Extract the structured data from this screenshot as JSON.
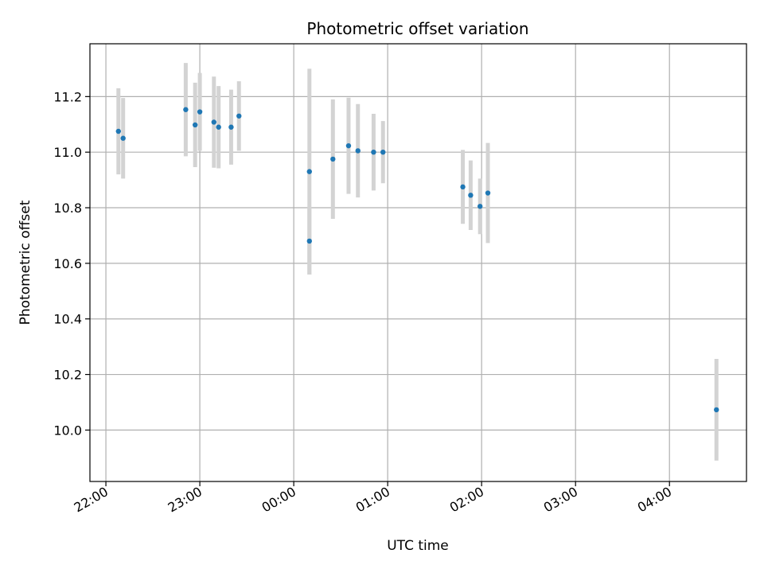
{
  "chart_data": {
    "type": "scatter",
    "title": "Photometric offset variation",
    "xlabel": "UTC time",
    "ylabel": "Photometric offset",
    "x_ticks": [
      "22:00",
      "23:00",
      "00:00",
      "01:00",
      "02:00",
      "03:00",
      "04:00"
    ],
    "y_ticks": [
      "10.0",
      "10.2",
      "10.4",
      "10.6",
      "10.8",
      "11.0",
      "11.2"
    ],
    "xlim_hours": [
      21.83,
      28.82
    ],
    "ylim": [
      9.815,
      11.39
    ],
    "grid": true,
    "point_color": "#1f77b4",
    "errorbar_color": "#d3d3d3",
    "points": [
      {
        "t": "22:08",
        "y": 11.075,
        "err": 0.155
      },
      {
        "t": "22:11",
        "y": 11.05,
        "err": 0.145
      },
      {
        "t": "22:51",
        "y": 11.153,
        "err": 0.168
      },
      {
        "t": "22:57",
        "y": 11.098,
        "err": 0.152
      },
      {
        "t": "23:00",
        "y": 11.145,
        "err": 0.14
      },
      {
        "t": "23:09",
        "y": 11.108,
        "err": 0.164
      },
      {
        "t": "23:12",
        "y": 11.09,
        "err": 0.148
      },
      {
        "t": "23:20",
        "y": 11.09,
        "err": 0.135
      },
      {
        "t": "23:25",
        "y": 11.13,
        "err": 0.125
      },
      {
        "t": "00:10",
        "y": 10.68,
        "err": 0.12
      },
      {
        "t": "00:10",
        "y": 10.93,
        "err": 0.37
      },
      {
        "t": "00:25",
        "y": 10.975,
        "err": 0.215
      },
      {
        "t": "00:35",
        "y": 11.023,
        "err": 0.173
      },
      {
        "t": "00:41",
        "y": 11.005,
        "err": 0.168
      },
      {
        "t": "00:51",
        "y": 11.0,
        "err": 0.138
      },
      {
        "t": "00:57",
        "y": 11.0,
        "err": 0.112
      },
      {
        "t": "01:48",
        "y": 10.875,
        "err": 0.133
      },
      {
        "t": "01:53",
        "y": 10.845,
        "err": 0.125
      },
      {
        "t": "01:59",
        "y": 10.805,
        "err": 0.1
      },
      {
        "t": "02:04",
        "y": 10.853,
        "err": 0.18
      },
      {
        "t": "04:30",
        "y": 10.073,
        "err": 0.183
      }
    ]
  }
}
